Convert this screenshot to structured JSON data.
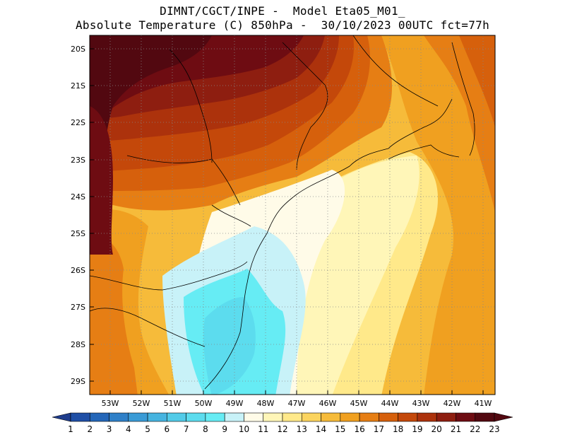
{
  "header": {
    "line1": "DIMNT/CGCT/INPE -  Model Eta05_M01_",
    "line2": "Absolute Temperature (C) 850hPa -  30/10/2023 00UTC fct=77h"
  },
  "axes": {
    "lat_labels": [
      "20S",
      "21S",
      "22S",
      "23S",
      "24S",
      "25S",
      "26S",
      "27S",
      "28S",
      "29S"
    ],
    "lon_labels": [
      "53W",
      "52W",
      "51W",
      "50W",
      "49W",
      "48W",
      "47W",
      "46W",
      "45W",
      "44W",
      "43W",
      "42W",
      "41W"
    ]
  },
  "colorbar": {
    "labels": [
      "1",
      "2",
      "3",
      "4",
      "5",
      "6",
      "7",
      "8",
      "9",
      "10",
      "11",
      "12",
      "13",
      "14",
      "15",
      "16",
      "17",
      "18",
      "19",
      "20",
      "21",
      "22",
      "23"
    ],
    "colors": [
      "#1e3c8c",
      "#1f4fa6",
      "#2466b8",
      "#2f80c8",
      "#3a9bd6",
      "#46b4e0",
      "#52cbe8",
      "#5cdcee",
      "#66ecf4",
      "#c8f2f8",
      "#fffbe8",
      "#fff6b8",
      "#ffe98a",
      "#fbd45e",
      "#f6bb3a",
      "#f0a020",
      "#e67e14",
      "#d6600c",
      "#c4480a",
      "#ac320c",
      "#8e1e10",
      "#6e0c12",
      "#520810"
    ]
  }
}
